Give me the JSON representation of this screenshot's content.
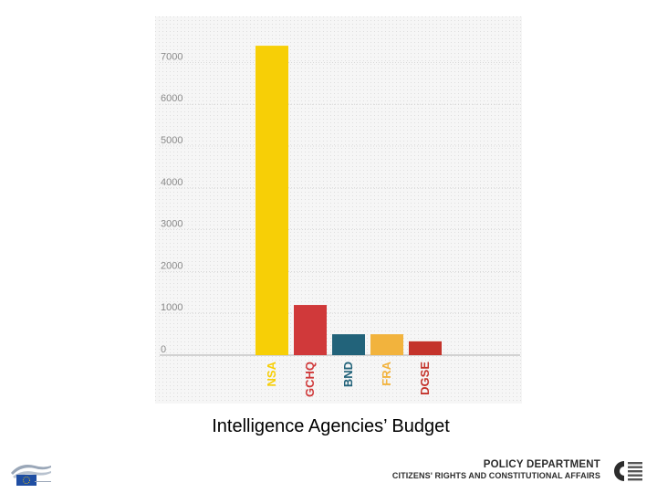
{
  "caption": "Intelligence Agencies’ Budget",
  "footer": {
    "department_title": "POLICY DEPARTMENT",
    "department_subtitle": "CITIZENS' RIGHTS AND CONSTITUTIONAL AFFAIRS"
  },
  "chart_data": {
    "type": "bar",
    "categories": [
      "NSA",
      "GCHQ",
      "BND",
      "FRA",
      "DGSE"
    ],
    "values": [
      7400,
      1200,
      500,
      500,
      330
    ],
    "colors": [
      "#f7cf06",
      "#d0393a",
      "#22637a",
      "#f2b33d",
      "#c4332b"
    ],
    "ylim": [
      0,
      7000
    ],
    "yticks": [
      0,
      1000,
      2000,
      3000,
      4000,
      5000,
      6000,
      7000
    ],
    "grid": true,
    "title": "",
    "xlabel": "",
    "ylabel": ""
  }
}
